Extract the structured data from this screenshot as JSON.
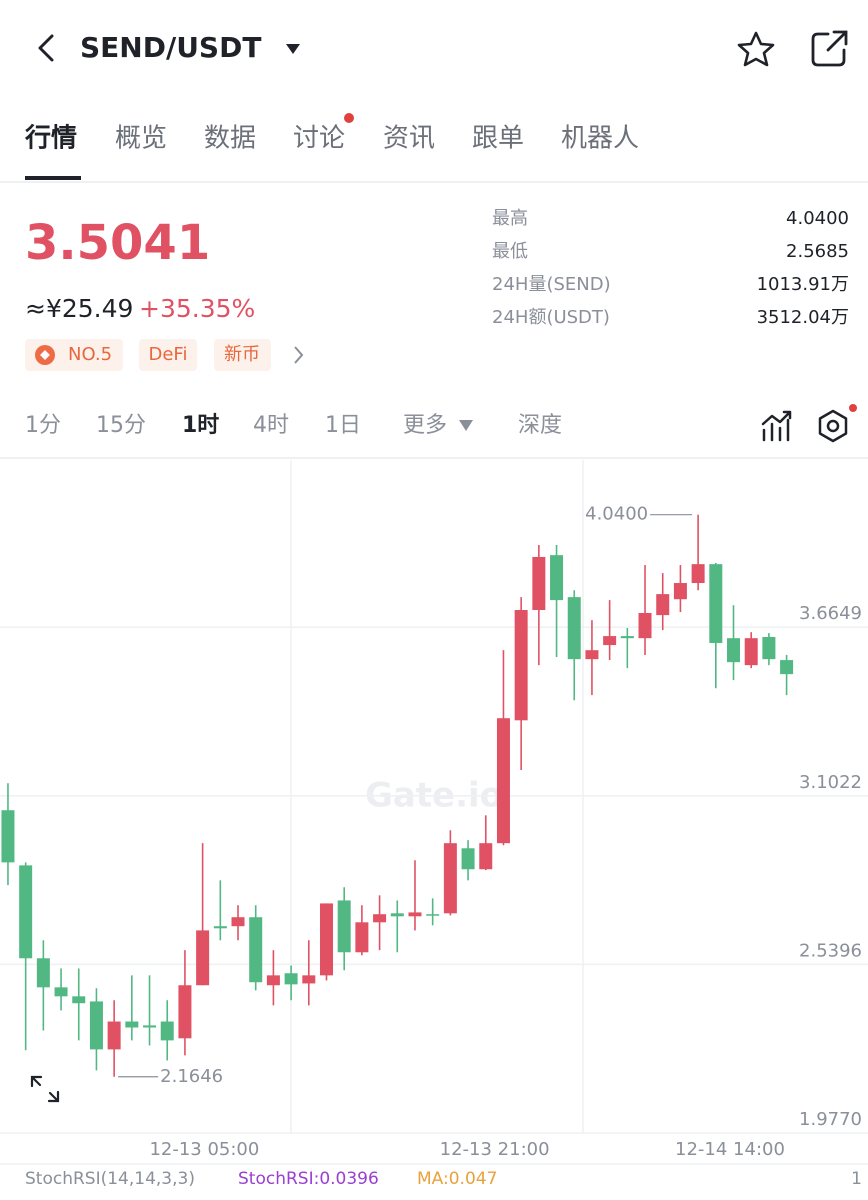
{
  "header": {
    "pair": "SEND/USDT"
  },
  "tabs": [
    "行情",
    "概览",
    "数据",
    "讨论",
    "资讯",
    "跟单",
    "机器人"
  ],
  "price": {
    "last": "3.5041",
    "cny": "≈¥25.49",
    "change": "+35.35%"
  },
  "tags": [
    "NO.5",
    "DeFi",
    "新币"
  ],
  "stats": [
    {
      "label": "最高",
      "value": "4.0400"
    },
    {
      "label": "最低",
      "value": "2.5685"
    },
    {
      "label": "24H量(SEND)",
      "value": "1013.91万"
    },
    {
      "label": "24H额(USDT)",
      "value": "3512.04万"
    }
  ],
  "intervals": [
    "1分",
    "15分",
    "1时",
    "4时",
    "1日",
    "更多",
    "深度"
  ],
  "watermark": "Gate.io",
  "chart_data": {
    "type": "candlestick",
    "up_color": "#e05263",
    "down_color": "#52b883",
    "open": [
      3.054,
      2.87,
      2.56,
      2.463,
      2.433,
      2.416,
      2.256,
      2.349,
      2.336,
      2.349,
      2.293,
      2.47,
      2.667,
      2.667,
      2.697,
      2.47,
      2.51,
      2.476,
      2.503,
      2.753,
      2.58,
      2.68,
      2.71,
      2.7,
      2.707,
      2.71,
      2.927,
      2.857,
      2.944,
      3.354,
      3.722,
      3.905,
      3.765,
      3.558,
      3.605,
      3.635,
      3.628,
      3.705,
      3.758,
      3.812,
      3.875,
      3.628,
      3.538,
      3.632,
      3.555
    ],
    "high": [
      3.144,
      2.88,
      2.62,
      2.526,
      2.526,
      2.46,
      2.42,
      2.503,
      2.503,
      2.42,
      2.587,
      2.944,
      2.82,
      2.737,
      2.737,
      2.587,
      2.536,
      2.62,
      2.743,
      2.797,
      2.737,
      2.77,
      2.753,
      2.887,
      2.76,
      2.987,
      2.954,
      3.037,
      3.588,
      3.765,
      3.939,
      3.939,
      3.788,
      3.688,
      3.755,
      3.662,
      3.872,
      3.845,
      3.872,
      4.04,
      3.879,
      3.738,
      3.648,
      3.645,
      3.572
    ],
    "low": [
      2.804,
      2.253,
      2.319,
      2.386,
      2.286,
      2.186,
      2.1646,
      2.286,
      2.269,
      2.219,
      2.236,
      2.47,
      2.62,
      2.62,
      2.453,
      2.403,
      2.42,
      2.403,
      2.486,
      2.52,
      2.57,
      2.587,
      2.58,
      2.653,
      2.67,
      2.703,
      2.82,
      2.854,
      2.937,
      3.188,
      3.538,
      3.565,
      3.421,
      3.438,
      3.555,
      3.528,
      3.572,
      3.655,
      3.715,
      3.788,
      3.461,
      3.488,
      3.528,
      3.538,
      3.438
    ],
    "close": [
      2.88,
      2.56,
      2.463,
      2.433,
      2.41,
      2.256,
      2.349,
      2.329,
      2.329,
      2.286,
      2.47,
      2.653,
      2.66,
      2.697,
      2.48,
      2.503,
      2.473,
      2.503,
      2.743,
      2.58,
      2.68,
      2.707,
      2.7,
      2.713,
      2.703,
      2.944,
      2.857,
      2.944,
      3.361,
      3.722,
      3.899,
      3.755,
      3.558,
      3.588,
      3.635,
      3.628,
      3.712,
      3.775,
      3.812,
      3.875,
      3.612,
      3.548,
      3.628,
      3.558,
      3.508
    ],
    "xlim": [
      -0.45,
      48.6
    ],
    "xticks": [
      {
        "value": 11.1,
        "label": "12-13 05:00"
      },
      {
        "value": 27.5,
        "label": "12-13 21:00"
      },
      {
        "value": 40.8,
        "label": "12-14 14:00"
      }
    ],
    "ylim": [
      1.977,
      4.2225
    ],
    "yticks": [
      {
        "value": 1.977,
        "label": "1.9770"
      },
      2.5396,
      3.1022,
      3.6649
    ],
    "annotations": {
      "high_label": "4.0400",
      "low_label": "2.1646"
    }
  },
  "indicator": {
    "name": "StochRSI(14,14,3,3)",
    "value": "StochRSI:0.0396",
    "ma": "MA:0.047",
    "scale": "1"
  }
}
